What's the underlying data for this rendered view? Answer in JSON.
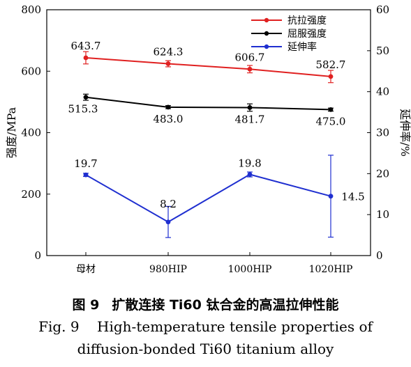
{
  "chart_data": {
    "type": "line",
    "categories": [
      "母材",
      "980HIP",
      "1000HIP",
      "1020HIP"
    ],
    "ylabel": "强度/MPa",
    "ylabel2": "延伸率/%",
    "ylim": [
      0,
      800
    ],
    "yticks": [
      "0",
      "200",
      "400",
      "600",
      "800"
    ],
    "ylim2": [
      0,
      60
    ],
    "yticks2": [
      "0",
      "10",
      "20",
      "30",
      "40",
      "50",
      "60"
    ],
    "legend_position": "top-right",
    "series": [
      {
        "name": "抗拉强度",
        "axis": "left",
        "color": "#e02020",
        "values": [
          643.7,
          624.3,
          606.7,
          582.7
        ],
        "errors": [
          20,
          10,
          12,
          20
        ],
        "labels": [
          "643.7",
          "624.3",
          "606.7",
          "582.7"
        ]
      },
      {
        "name": "屈服强度",
        "axis": "left",
        "color": "#000000",
        "values": [
          515.3,
          483.0,
          481.7,
          475.0
        ],
        "errors": [
          10,
          5,
          12,
          5
        ],
        "labels": [
          "515.3",
          "483.0",
          "481.7",
          "475.0"
        ]
      },
      {
        "name": "延伸率",
        "axis": "right",
        "color": "#1f2fd0",
        "values": [
          19.7,
          8.2,
          19.8,
          14.5
        ],
        "errors": [
          0.4,
          3.8,
          0.6,
          10.0
        ],
        "labels": [
          "19.7",
          "8.2",
          "19.8",
          "14.5"
        ]
      }
    ]
  },
  "caption": {
    "cn_number": "图 9",
    "cn_text": "扩散连接 Ti60 钛合金的高温拉伸性能",
    "en_line1": "Fig. 9    High-temperature tensile properties of",
    "en_line2": "diffusion-bonded Ti60 titanium alloy"
  }
}
